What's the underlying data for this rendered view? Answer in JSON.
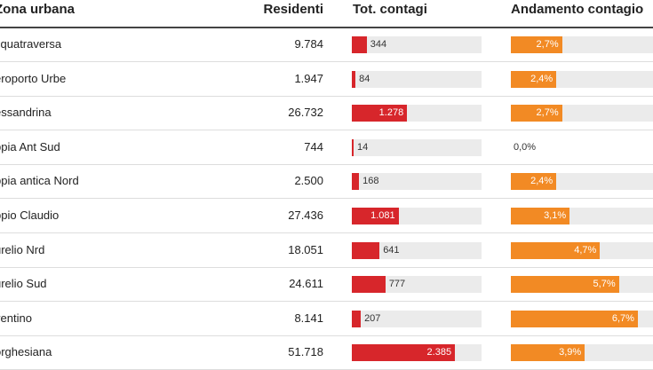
{
  "headers": {
    "zone": "Zona urbana",
    "residents": "Residenti",
    "total": "Tot. contagi",
    "trend": "Andamento contagio"
  },
  "colors": {
    "total_bar": "#d7262b",
    "trend_bar": "#f28a24",
    "track": "#ebebeb"
  },
  "scales": {
    "total_max": 3000,
    "trend_max": 7.5
  },
  "rows": [
    {
      "zone": "cquatraversa",
      "residents": "9.784",
      "total": 344,
      "total_label": "344",
      "trend": 2.7,
      "trend_label": "2,7%"
    },
    {
      "zone": "eroporto Urbe",
      "residents": "1.947",
      "total": 84,
      "total_label": "84",
      "trend": 2.4,
      "trend_label": "2,4%"
    },
    {
      "zone": "essandrina",
      "residents": "26.732",
      "total": 1278,
      "total_label": "1.278",
      "trend": 2.7,
      "trend_label": "2,7%"
    },
    {
      "zone": "ppia Ant Sud",
      "residents": "744",
      "total": 14,
      "total_label": "14",
      "trend": 0.0,
      "trend_label": "0,0%"
    },
    {
      "zone": "ppia antica Nord",
      "residents": "2.500",
      "total": 168,
      "total_label": "168",
      "trend": 2.4,
      "trend_label": "2,4%"
    },
    {
      "zone": "ppio Claudio",
      "residents": "27.436",
      "total": 1081,
      "total_label": "1.081",
      "trend": 3.1,
      "trend_label": "3,1%"
    },
    {
      "zone": "urelio Nrd",
      "residents": "18.051",
      "total": 641,
      "total_label": "641",
      "trend": 4.7,
      "trend_label": "4,7%"
    },
    {
      "zone": "urelio Sud",
      "residents": "24.611",
      "total": 777,
      "total_label": "777",
      "trend": 5.7,
      "trend_label": "5,7%"
    },
    {
      "zone": "ventino",
      "residents": "8.141",
      "total": 207,
      "total_label": "207",
      "trend": 6.7,
      "trend_label": "6,7%"
    },
    {
      "zone": "orghesiana",
      "residents": "51.718",
      "total": 2385,
      "total_label": "2.385",
      "trend": 3.9,
      "trend_label": "3,9%"
    }
  ]
}
